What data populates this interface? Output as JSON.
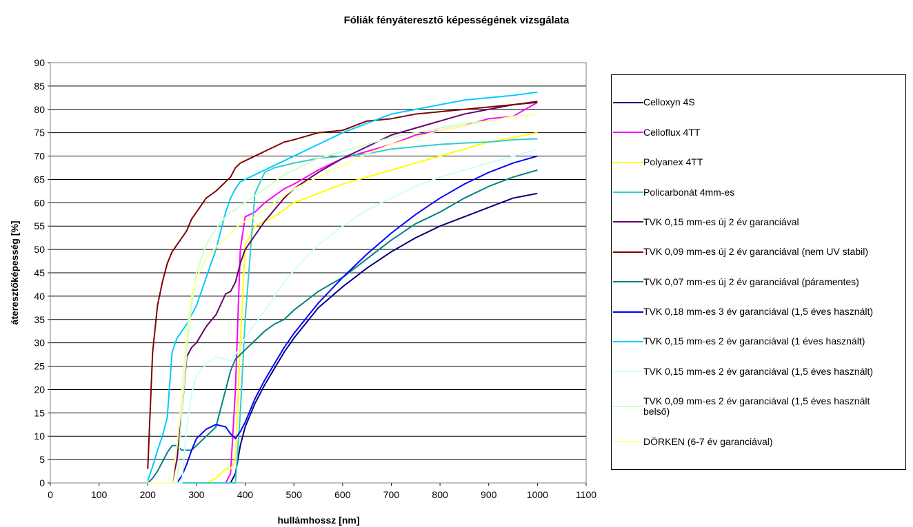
{
  "chart_data": {
    "type": "line",
    "title": "Fóliák fényáteresztő képességének vizsgálata",
    "xlabel": "hullámhossz [nm]",
    "ylabel": "áteresztőképesség [%]",
    "xlim": [
      0,
      1100
    ],
    "xticks": [
      0,
      100,
      200,
      300,
      400,
      500,
      600,
      700,
      800,
      900,
      1000,
      1100
    ],
    "ylim": [
      0,
      90
    ],
    "yticks": [
      0,
      5,
      10,
      15,
      20,
      25,
      30,
      35,
      40,
      45,
      50,
      55,
      60,
      65,
      70,
      75,
      80,
      85,
      90
    ],
    "grid": true,
    "legend": "right",
    "x": [
      200,
      210,
      220,
      230,
      240,
      250,
      260,
      270,
      280,
      290,
      300,
      320,
      340,
      360,
      370,
      380,
      390,
      400,
      420,
      440,
      460,
      480,
      500,
      550,
      600,
      650,
      700,
      750,
      800,
      850,
      900,
      950,
      1000
    ],
    "series": [
      {
        "name": "Celloxyn 4S",
        "color": "#000080",
        "values": [
          0,
          0,
          0,
          0,
          0,
          0,
          0,
          0,
          0,
          0,
          0,
          0,
          0,
          0,
          0,
          2,
          8,
          12,
          17,
          21,
          24.5,
          28,
          31,
          37.5,
          42,
          46,
          49.5,
          52.5,
          55,
          57,
          59,
          61,
          62
        ]
      },
      {
        "name": "Celloflux 4TT",
        "color": "#ff00ff",
        "values": [
          0,
          0,
          0,
          0,
          0,
          0,
          0,
          0,
          0,
          0,
          0,
          0,
          0,
          0,
          2,
          20,
          50,
          57,
          58,
          60,
          61.5,
          63,
          64,
          67,
          69.5,
          71,
          72.5,
          74.5,
          75.5,
          76.5,
          78,
          78.5,
          81.5
        ]
      },
      {
        "name": "Polyanex 4TT",
        "color": "#ffff00",
        "values": [
          0,
          0,
          0,
          0,
          0,
          0,
          0,
          0,
          0,
          0,
          0,
          0,
          1,
          3,
          3,
          5,
          30,
          51,
          55,
          56,
          57,
          58.5,
          60,
          62,
          64,
          65.5,
          67,
          68.5,
          70,
          71.5,
          73,
          74,
          75
        ]
      },
      {
        "name": "Policarbonát 4mm-es",
        "color": "#33cccc",
        "values": [
          0,
          0,
          0,
          0,
          0,
          0,
          0,
          0,
          0,
          0,
          0,
          0,
          0,
          0,
          0,
          0,
          15,
          35,
          62,
          66.5,
          67.5,
          68,
          68.5,
          69.5,
          70,
          70.5,
          71.5,
          72,
          72.5,
          72.8,
          73,
          73.5,
          73.7
        ]
      },
      {
        "name": "TVK 0,15 mm-es új 2 év garanciával",
        "color": "#660066",
        "values": [
          0,
          0,
          0,
          0,
          0,
          0,
          5,
          15,
          27,
          29,
          30,
          33.5,
          36,
          40.5,
          41,
          43,
          47,
          50,
          53,
          56,
          58.5,
          61,
          63,
          66.5,
          69.5,
          72,
          74.5,
          76,
          77.5,
          79,
          80,
          81,
          81.5
        ]
      },
      {
        "name": "TVK 0,09 mm-es új 2 év garanciával (nem UV stabil)",
        "color": "#800000",
        "values": [
          3,
          28,
          38,
          43,
          47,
          49.5,
          51,
          52.5,
          54,
          56.5,
          58,
          61,
          62.5,
          64.5,
          65.5,
          67.5,
          68.5,
          69,
          70,
          71,
          72,
          73,
          73.5,
          75,
          75.5,
          77.5,
          78,
          79,
          79.5,
          80,
          80.5,
          81,
          81.7
        ]
      },
      {
        "name": "TVK 0,07 mm-es új 2 év garanciával (páramentes)",
        "color": "#008080",
        "values": [
          0,
          1,
          2.5,
          4.5,
          6.5,
          8,
          8,
          7,
          7,
          7,
          8,
          10,
          12,
          20,
          24,
          26.5,
          27.5,
          28.5,
          30.5,
          32.5,
          34,
          35,
          37,
          41,
          44,
          48,
          52,
          55.5,
          58,
          61,
          63.5,
          65.5,
          67
        ]
      },
      {
        "name": "TVK 0,18 mm-es  3 év garanciával (1,5 éves használt)",
        "color": "#0000ff",
        "values": [
          0,
          0,
          0,
          0,
          0,
          0,
          0,
          1.5,
          4,
          7,
          9.5,
          11.5,
          12.5,
          12,
          10.5,
          9.5,
          11,
          13,
          18,
          22,
          25.5,
          29,
          32,
          38.5,
          44,
          49,
          53.5,
          57.5,
          61,
          64,
          66.5,
          68.5,
          70
        ]
      },
      {
        "name": "TVK 0,15 mm-es  2 év garanciával (1 éves használt)",
        "color": "#00ccff",
        "values": [
          0.5,
          3.5,
          7,
          10,
          14,
          28,
          31,
          32.5,
          34,
          36,
          38,
          44,
          50,
          58,
          61,
          63,
          64.5,
          65,
          66,
          67,
          68,
          69,
          70,
          72.5,
          75,
          77,
          79,
          80,
          81,
          82,
          82.5,
          83,
          83.7
        ]
      },
      {
        "name": "TVK 0,15 mm-es  2 év garanciával (1,5 éves használt)",
        "color": "#ccffff",
        "values": [
          0,
          0,
          0,
          0,
          0,
          0,
          0,
          0,
          12,
          19,
          23,
          25.5,
          27,
          26.5,
          26,
          27.5,
          29,
          31,
          34,
          37,
          40,
          43,
          45.5,
          51,
          55,
          58.5,
          61,
          63.5,
          65.5,
          67,
          68.5,
          70,
          71.5
        ]
      },
      {
        "name": "TVK 0,09 mm-es  2 év garanciával (1,5 éves használt belső)",
        "color": "#ccffcc",
        "values": [
          0,
          0,
          0,
          0,
          0,
          0,
          0,
          15,
          28,
          38,
          45,
          51,
          54.5,
          57,
          58,
          58.5,
          59.5,
          60,
          61.5,
          63,
          64.5,
          66,
          67,
          69.5,
          71,
          72.5,
          74,
          75,
          76,
          77,
          77.5,
          78.5,
          79
        ]
      },
      {
        "name": "DÖRKEN (6-7 év garanciával)",
        "color": "#ffff99",
        "values": [
          0,
          0,
          0,
          0,
          0,
          0,
          8,
          20,
          32,
          40,
          44,
          48,
          50.5,
          52.5,
          53.5,
          54.5,
          55.5,
          56,
          57,
          58.5,
          60,
          61.5,
          63,
          65.5,
          68,
          70.5,
          72.5,
          74,
          75.5,
          76.5,
          77.5,
          78.5,
          79
        ]
      }
    ]
  }
}
